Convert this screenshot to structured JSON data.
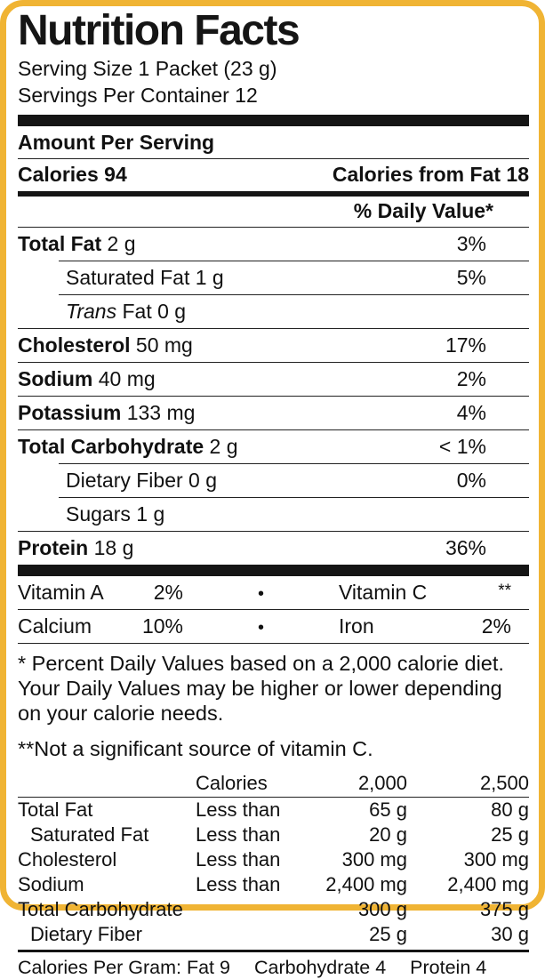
{
  "colors": {
    "border": "#F0B434",
    "text": "#111111",
    "bar": "#151515"
  },
  "header": {
    "title": "Nutrition Facts",
    "serving_size": "Serving Size 1 Packet (23 g)",
    "servings_per_container": "Servings Per Container 12"
  },
  "amount_per_serving": "Amount Per Serving",
  "calories_row": {
    "calories": "Calories 94",
    "calories_from_fat": "Calories from Fat 18"
  },
  "daily_value_header": "% Daily Value*",
  "nutrients": [
    {
      "name": "Total Fat",
      "amount": "2 g",
      "dv": "3%"
    },
    {
      "name": "Saturated Fat",
      "amount": "1 g",
      "dv": "5%"
    },
    {
      "name_italic": "Trans",
      "name": "Fat",
      "amount": "0 g",
      "dv": ""
    },
    {
      "name": "Cholesterol",
      "amount": "50 mg",
      "dv": "17%"
    },
    {
      "name": "Sodium",
      "amount": "40 mg",
      "dv": "2%"
    },
    {
      "name": "Potassium",
      "amount": "133 mg",
      "dv": "4%"
    },
    {
      "name": "Total Carbohydrate",
      "amount": "2 g",
      "dv": "< 1%"
    },
    {
      "name": "Dietary Fiber",
      "amount": "0 g",
      "dv": "0%"
    },
    {
      "name": "Sugars",
      "amount": "1 g",
      "dv": ""
    },
    {
      "name": "Protein",
      "amount": "18 g",
      "dv": "36%"
    }
  ],
  "vitamins": {
    "bullet": "•",
    "rows": [
      {
        "left_name": "Vitamin A",
        "left_value": "2%",
        "right_name": "Vitamin C",
        "right_value": "**"
      },
      {
        "left_name": "Calcium",
        "left_value": "10%",
        "right_name": "Iron",
        "right_value": "2%"
      }
    ]
  },
  "footnotes": {
    "daily_values": "* Percent Daily Values based on a 2,000 calorie diet. Your Daily Values may be higher or lower depending on your calorie needs.",
    "vitamin_c": "**Not a significant source of vitamin C."
  },
  "dv_table": {
    "header": {
      "calories": "Calories",
      "col_2000": "2,000",
      "col_2500": "2,500"
    },
    "rows": [
      {
        "name": "Total Fat",
        "qualifier": "Less than",
        "v2000": "65 g",
        "v2500": "80 g"
      },
      {
        "name": "Saturated Fat",
        "qualifier": "Less than",
        "v2000": "20 g",
        "v2500": "25 g"
      },
      {
        "name": "Cholesterol",
        "qualifier": "Less than",
        "v2000": "300 mg",
        "v2500": "300 mg"
      },
      {
        "name": "Sodium",
        "qualifier": "Less than",
        "v2000": "2,400 mg",
        "v2500": "2,400 mg"
      },
      {
        "name": "Total Carbohydrate",
        "qualifier": "",
        "v2000": "300 g",
        "v2500": "375 g"
      },
      {
        "name": "Dietary Fiber",
        "qualifier": "",
        "v2000": "25 g",
        "v2500": "30 g"
      }
    ]
  },
  "calories_per_gram": {
    "label_and_fat": "Calories Per Gram: Fat 9",
    "carbohydrate": "Carbohydrate 4",
    "protein": "Protein 4"
  }
}
